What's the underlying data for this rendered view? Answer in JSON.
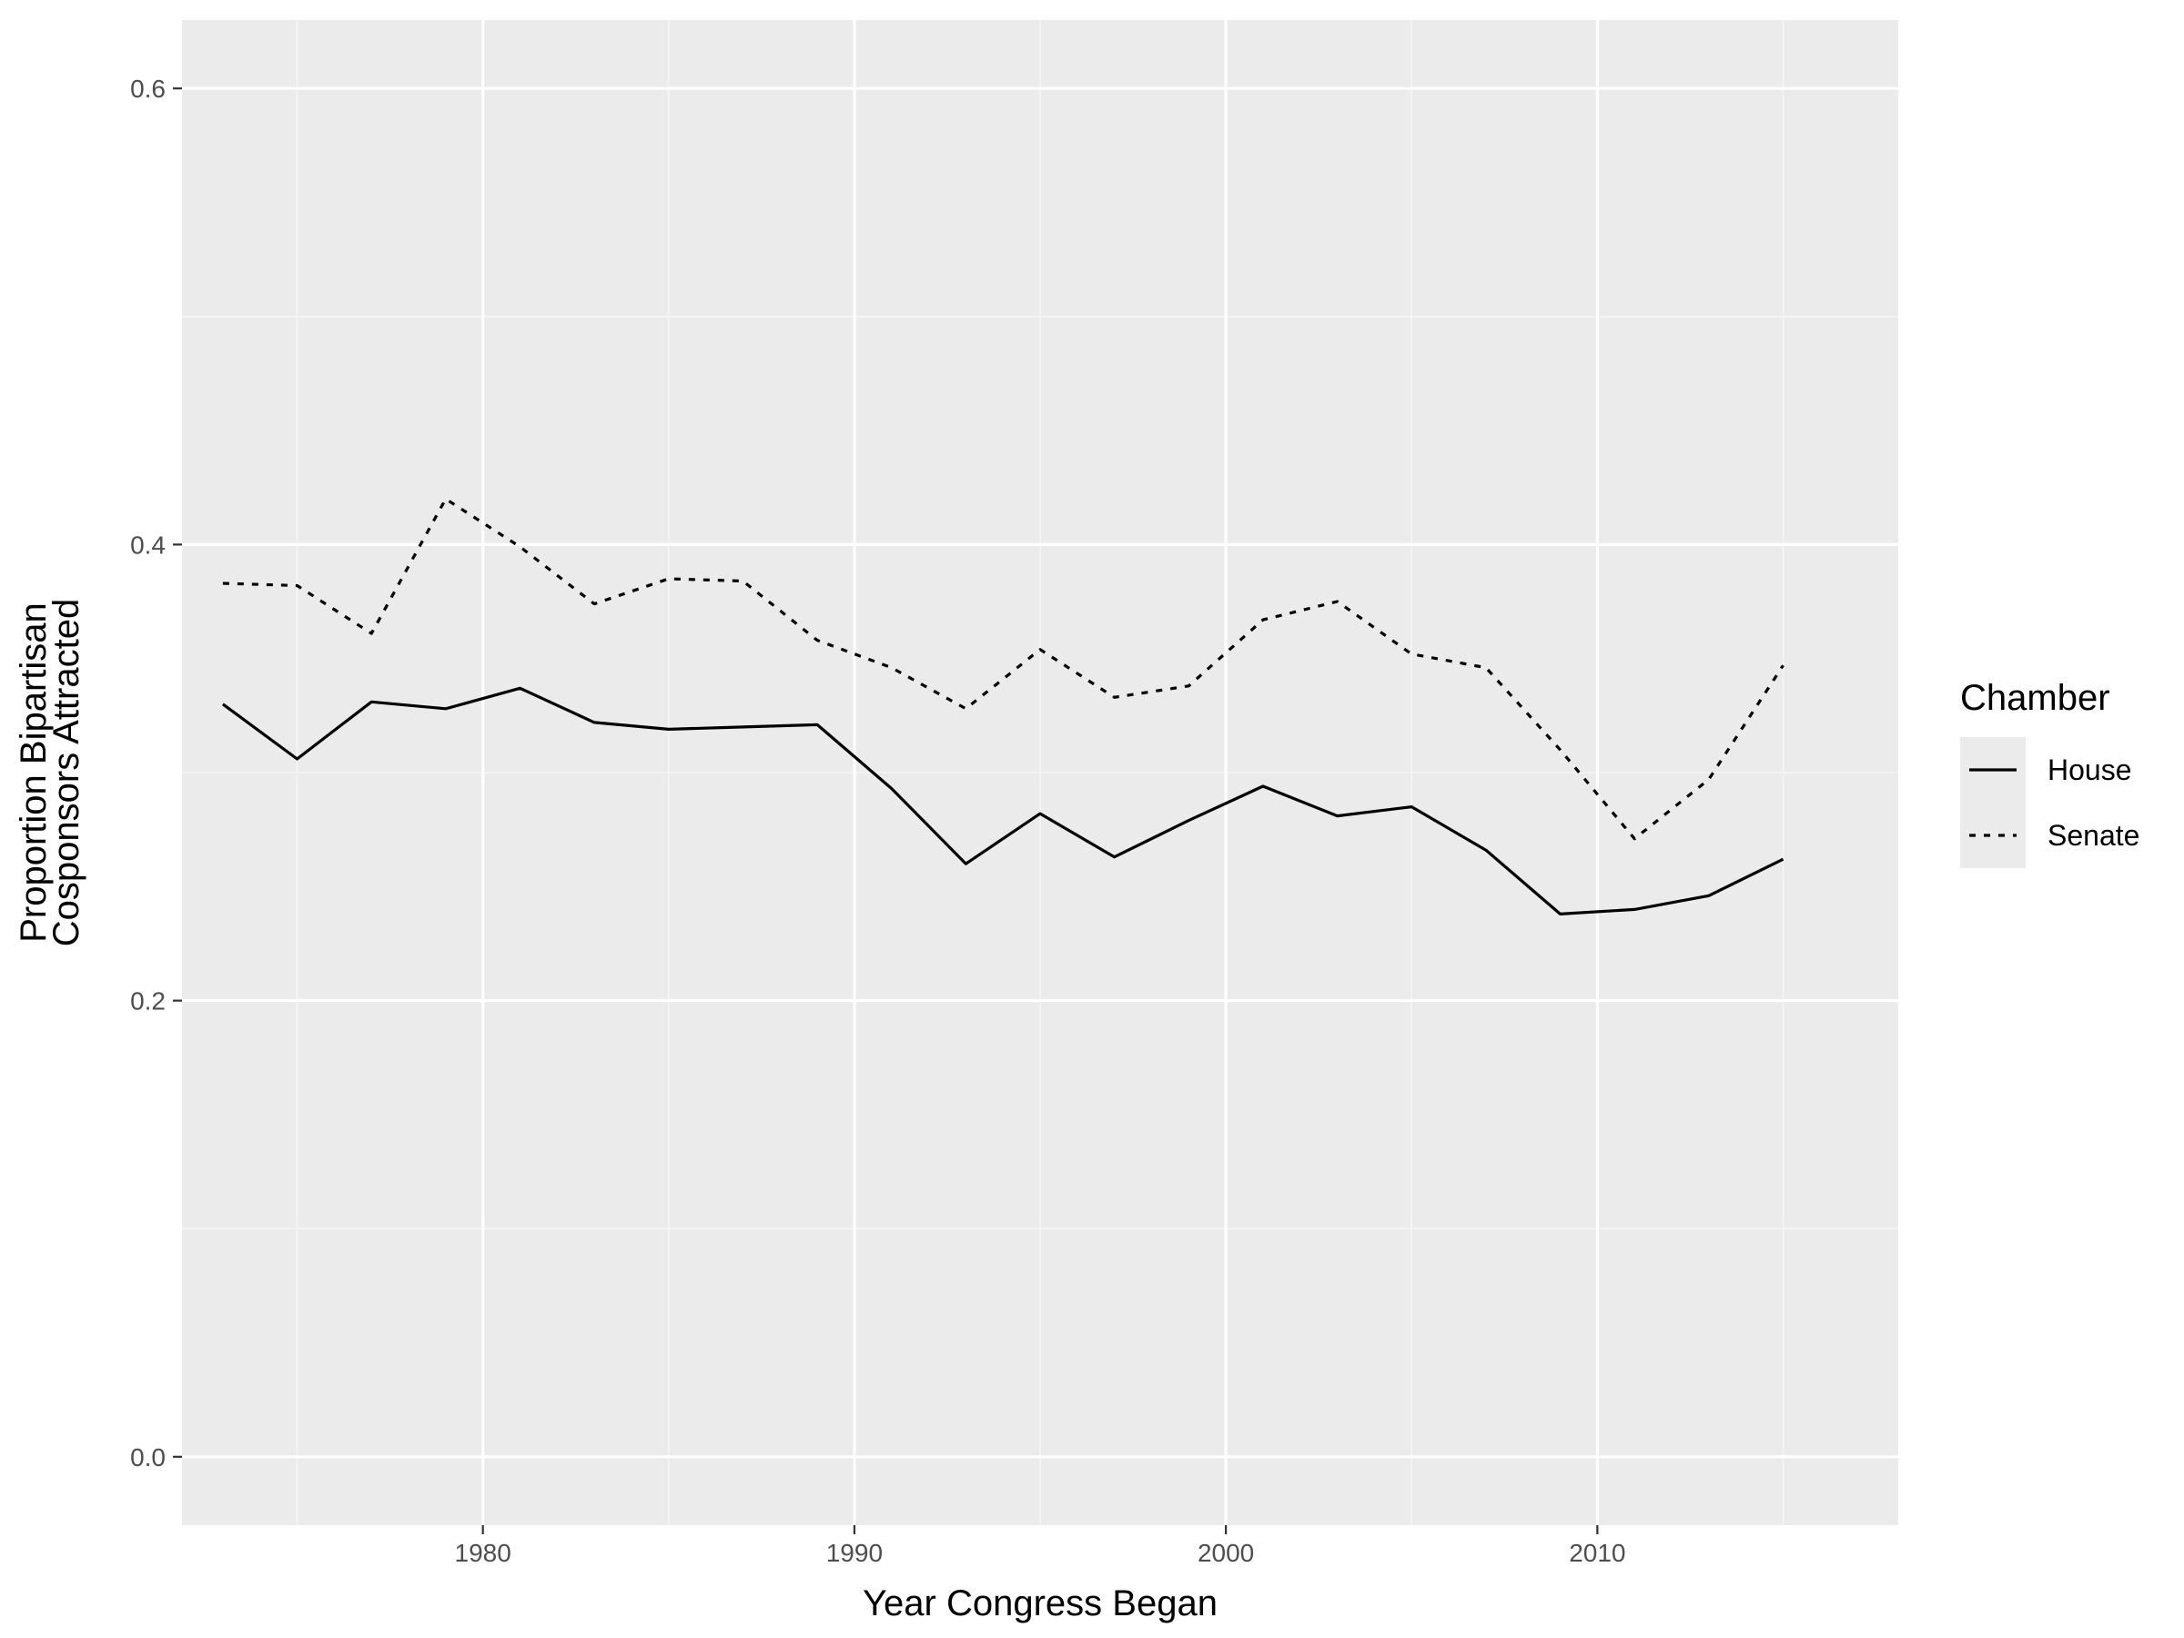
{
  "chart_data": {
    "type": "line",
    "title": "",
    "xlabel": "Year Congress Began",
    "ylabel": [
      "Proportion Bipartisan",
      "Cosponsors Attracted"
    ],
    "xlim": [
      1971.9,
      2018.1
    ],
    "ylim": [
      -0.03,
      0.63
    ],
    "x_ticks": [
      1980,
      1990,
      2000,
      2010
    ],
    "y_ticks": [
      0.0,
      0.2,
      0.4,
      0.6
    ],
    "x_tick_labels": [
      "1980",
      "1990",
      "2000",
      "2010"
    ],
    "y_tick_labels": [
      "0.0",
      "0.2",
      "0.4",
      "0.6"
    ],
    "grid": true,
    "legend_title": "Chamber",
    "legend_position": "right",
    "x": [
      1973,
      1975,
      1977,
      1979,
      1981,
      1983,
      1985,
      1987,
      1989,
      1991,
      1993,
      1995,
      1997,
      1999,
      2001,
      2003,
      2005,
      2007,
      2009,
      2011,
      2013,
      2015
    ],
    "series": [
      {
        "name": "House",
        "linetype": "solid",
        "color": "#000000",
        "values": [
          0.33,
          0.306,
          0.331,
          0.328,
          0.337,
          0.322,
          0.319,
          0.32,
          0.321,
          0.293,
          0.26,
          0.282,
          0.263,
          0.279,
          0.294,
          0.281,
          0.285,
          0.266,
          0.238,
          0.24,
          0.246,
          0.262
        ]
      },
      {
        "name": "Senate",
        "linetype": "dotted",
        "color": "#000000",
        "values": [
          0.383,
          0.382,
          0.361,
          0.42,
          0.399,
          0.374,
          0.385,
          0.384,
          0.358,
          0.346,
          0.328,
          0.354,
          0.333,
          0.338,
          0.367,
          0.375,
          0.352,
          0.346,
          0.31,
          0.271,
          0.297,
          0.347
        ]
      }
    ],
    "colors": {
      "panel_background": "#ebebeb",
      "grid_major": "#ffffff",
      "grid_minor": "#f5f5f5",
      "tick_text": "#4d4d4d",
      "tick_mark": "#333333"
    }
  }
}
